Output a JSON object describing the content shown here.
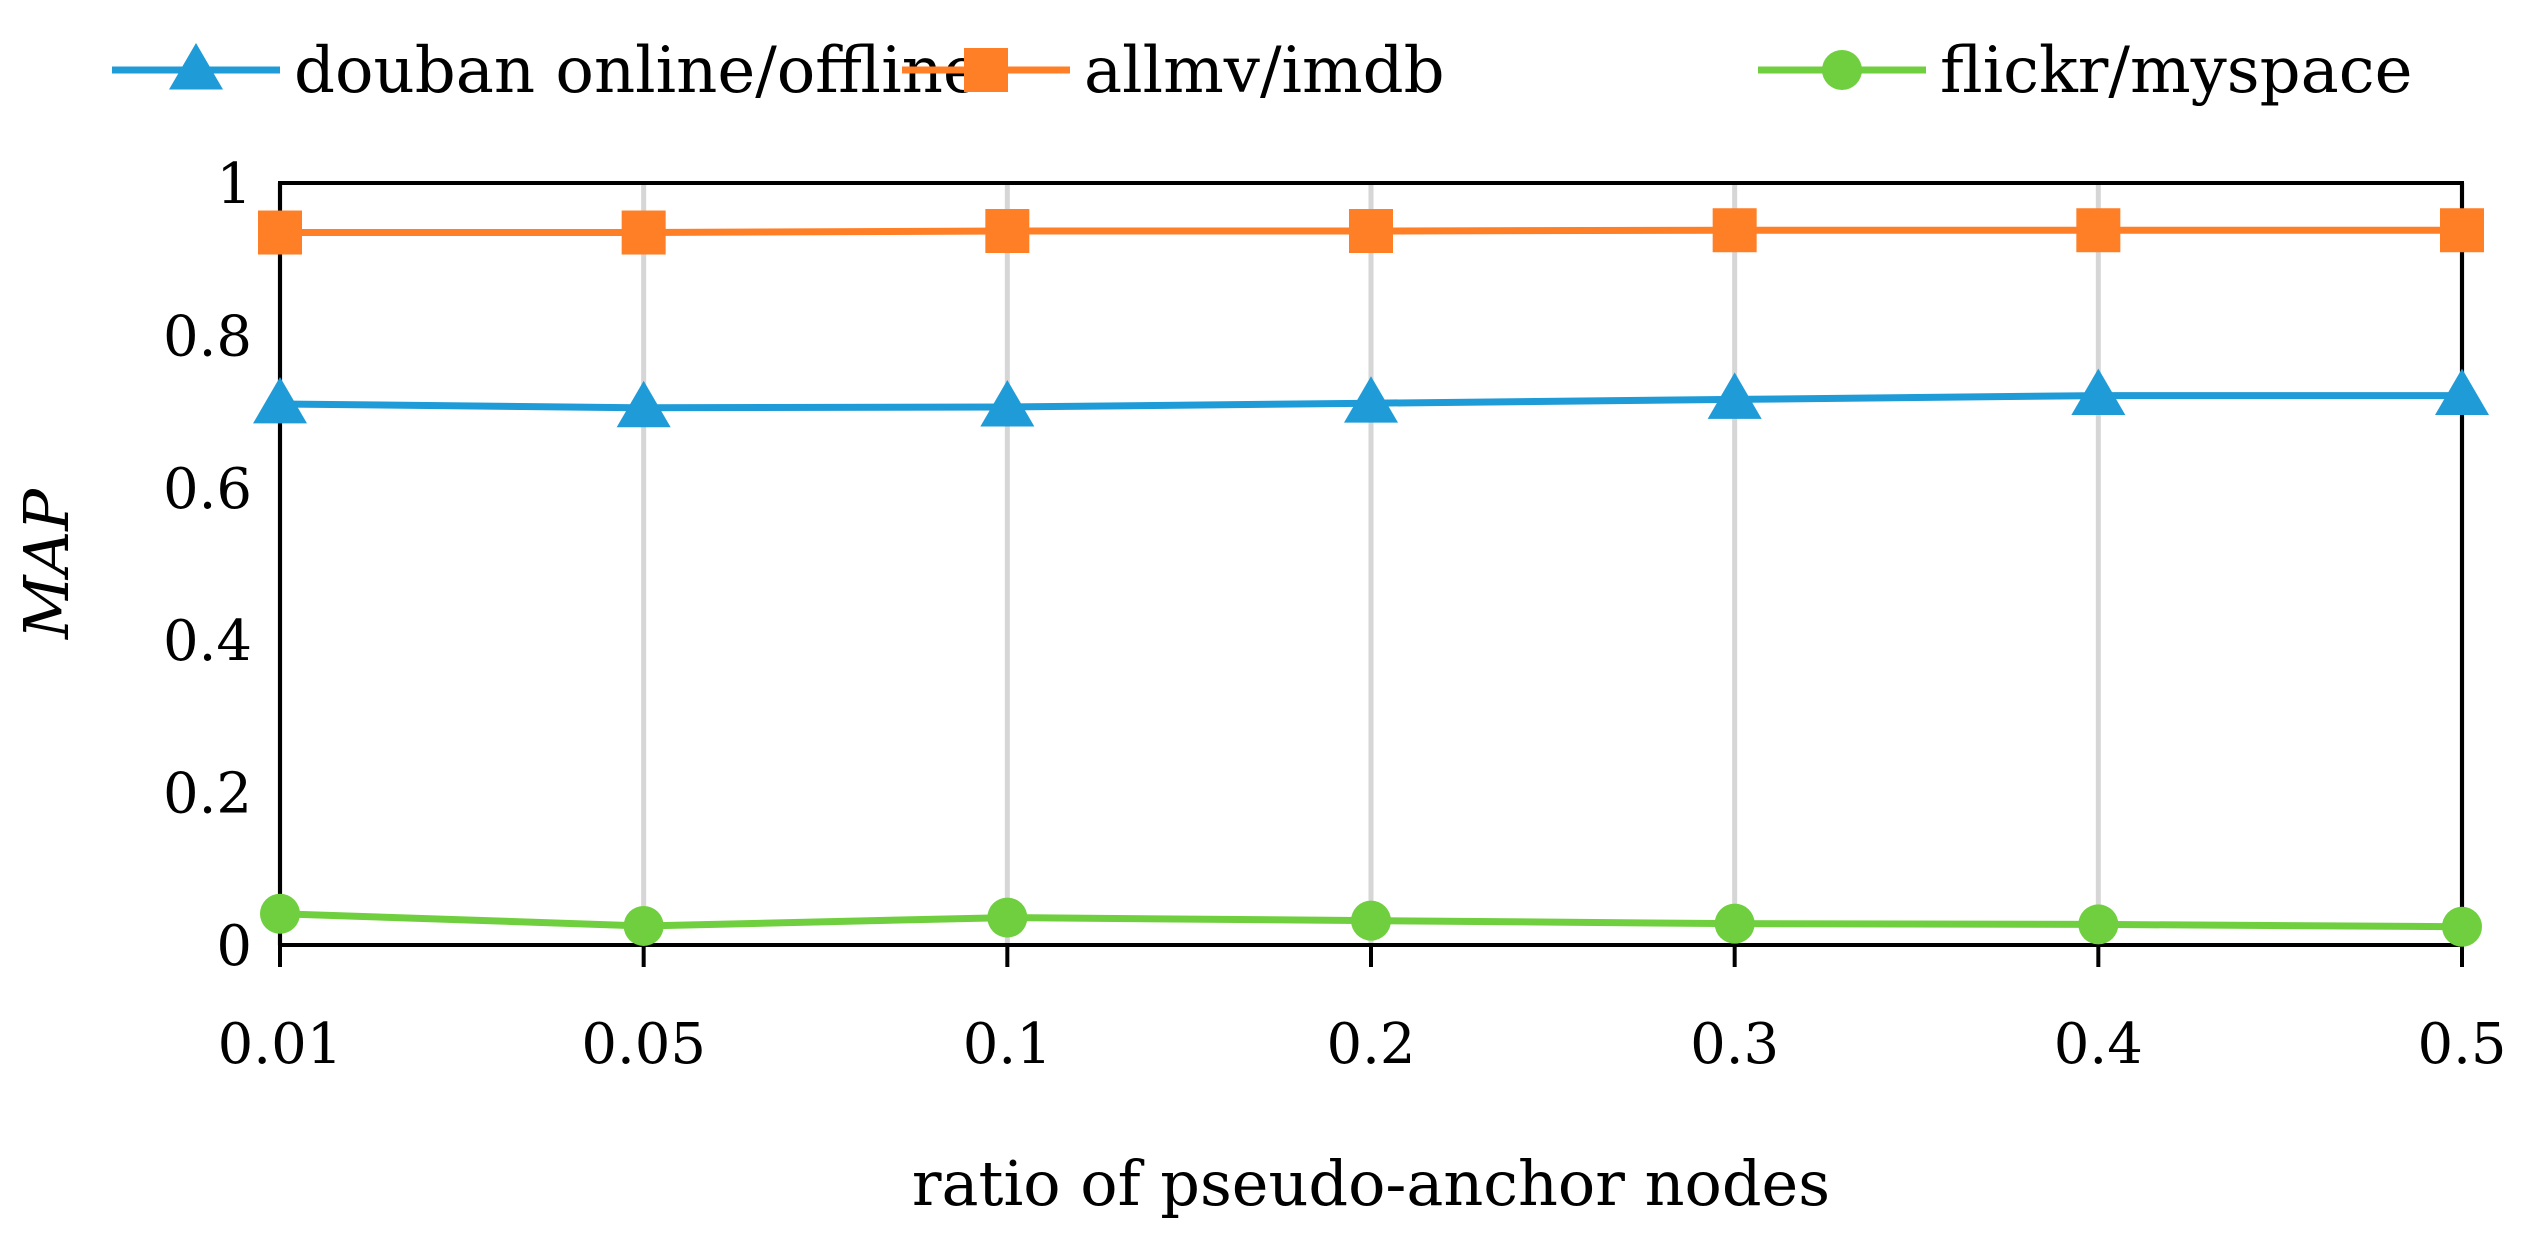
{
  "chart_data": {
    "type": "line",
    "title": "",
    "xlabel": "ratio of pseudo-anchor nodes",
    "ylabel": "MAP",
    "categories": [
      "0.01",
      "0.05",
      "0.1",
      "0.2",
      "0.3",
      "0.4",
      "0.5"
    ],
    "ylim": [
      0,
      1
    ],
    "yticks": [
      "0",
      "0.2",
      "0.4",
      "0.6",
      "0.8",
      "1"
    ],
    "grid": "vertical",
    "legend_position": "top",
    "series": [
      {
        "name": "douban online/offline",
        "color": "#1f9bd7",
        "marker": "triangle",
        "values": [
          0.71,
          0.705,
          0.706,
          0.711,
          0.716,
          0.721,
          0.721
        ]
      },
      {
        "name": "allmv/imdb",
        "color": "#ff7f27",
        "marker": "square",
        "values": [
          0.935,
          0.935,
          0.937,
          0.937,
          0.938,
          0.938,
          0.938
        ]
      },
      {
        "name": "flickr/myspace",
        "color": "#6fcf3f",
        "marker": "circle",
        "values": [
          0.041,
          0.025,
          0.036,
          0.032,
          0.028,
          0.027,
          0.024
        ]
      }
    ]
  }
}
